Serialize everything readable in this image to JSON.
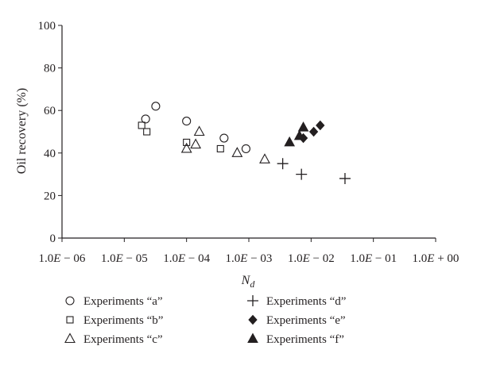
{
  "chart_data": {
    "type": "scatter",
    "title": "",
    "xlabel": "N",
    "xlabel_subscript": "d",
    "ylabel": "Oil recovery (%)",
    "x_scale": "log",
    "xlim": [
      1e-06,
      1
    ],
    "ylim": [
      0,
      100
    ],
    "x_ticks": [
      1e-06,
      1e-05,
      0.0001,
      0.001,
      0.01,
      0.1,
      1
    ],
    "x_tick_labels": [
      "1.0E − 06",
      "1.0E − 05",
      "1.0E − 04",
      "1.0E − 03",
      "1.0E − 02",
      "1.0E − 01",
      "1.0E + 00"
    ],
    "y_ticks": [
      0,
      20,
      40,
      60,
      80,
      100
    ],
    "y_tick_labels": [
      "0",
      "20",
      "40",
      "60",
      "80",
      "100"
    ],
    "grid": false,
    "legend_position": "bottom",
    "marker_color": "#231f20",
    "series": [
      {
        "name": "Experiments “a”",
        "marker": "circle-open",
        "points": [
          [
            2.2e-05,
            56
          ],
          [
            3.2e-05,
            62
          ],
          [
            0.0001,
            55
          ],
          [
            0.0004,
            47
          ],
          [
            0.0009,
            42
          ]
        ]
      },
      {
        "name": "Experiments “b”",
        "marker": "square-open",
        "points": [
          [
            1.9e-05,
            53
          ],
          [
            2.3e-05,
            50
          ],
          [
            0.0001,
            45
          ],
          [
            0.00035,
            42
          ]
        ]
      },
      {
        "name": "Experiments “c”",
        "marker": "triangle-open",
        "points": [
          [
            0.0001,
            42
          ],
          [
            0.00014,
            44
          ],
          [
            0.00016,
            50
          ],
          [
            0.00065,
            40
          ],
          [
            0.0018,
            37
          ]
        ]
      },
      {
        "name": "Experiments “d”",
        "marker": "plus",
        "points": [
          [
            0.0035,
            35
          ],
          [
            0.007,
            30
          ],
          [
            0.035,
            28
          ]
        ]
      },
      {
        "name": "Experiments “e”",
        "marker": "diamond-filled",
        "points": [
          [
            0.0075,
            47
          ],
          [
            0.011,
            50
          ],
          [
            0.014,
            53
          ]
        ]
      },
      {
        "name": "Experiments “f”",
        "marker": "triangle-filled",
        "points": [
          [
            0.0045,
            45
          ],
          [
            0.0065,
            48
          ],
          [
            0.0075,
            52
          ]
        ]
      }
    ]
  }
}
